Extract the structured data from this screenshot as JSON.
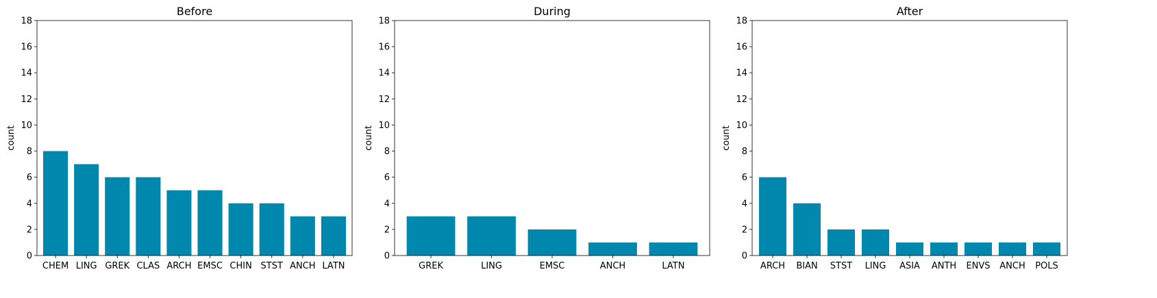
{
  "colors": {
    "bar": "#0087ad",
    "axis": "#000000",
    "background": "#ffffff"
  },
  "chart_data": [
    {
      "type": "bar",
      "title": "Before",
      "xlabel": "",
      "ylabel": "count",
      "ylim": [
        0,
        18
      ],
      "yticks": [
        0,
        2,
        4,
        6,
        8,
        10,
        12,
        14,
        16,
        18
      ],
      "grid": false,
      "categories": [
        "CHEM",
        "LING",
        "GREK",
        "CLAS",
        "ARCH",
        "EMSC",
        "CHIN",
        "STST",
        "ANCH",
        "LATN"
      ],
      "values": [
        8,
        7,
        6,
        6,
        5,
        5,
        4,
        4,
        3,
        3
      ]
    },
    {
      "type": "bar",
      "title": "During",
      "xlabel": "",
      "ylabel": "count",
      "ylim": [
        0,
        18
      ],
      "yticks": [
        0,
        2,
        4,
        6,
        8,
        10,
        12,
        14,
        16,
        18
      ],
      "grid": false,
      "categories": [
        "GREK",
        "LING",
        "EMSC",
        "ANCH",
        "LATN"
      ],
      "values": [
        3,
        3,
        2,
        1,
        1
      ]
    },
    {
      "type": "bar",
      "title": "After",
      "xlabel": "",
      "ylabel": "count",
      "ylim": [
        0,
        18
      ],
      "yticks": [
        0,
        2,
        4,
        6,
        8,
        10,
        12,
        14,
        16,
        18
      ],
      "grid": false,
      "categories": [
        "ARCH",
        "BIAN",
        "STST",
        "LING",
        "ASIA",
        "ANTH",
        "ENVS",
        "ANCH",
        "POLS"
      ],
      "values": [
        6,
        4,
        2,
        2,
        1,
        1,
        1,
        1,
        1
      ]
    }
  ]
}
